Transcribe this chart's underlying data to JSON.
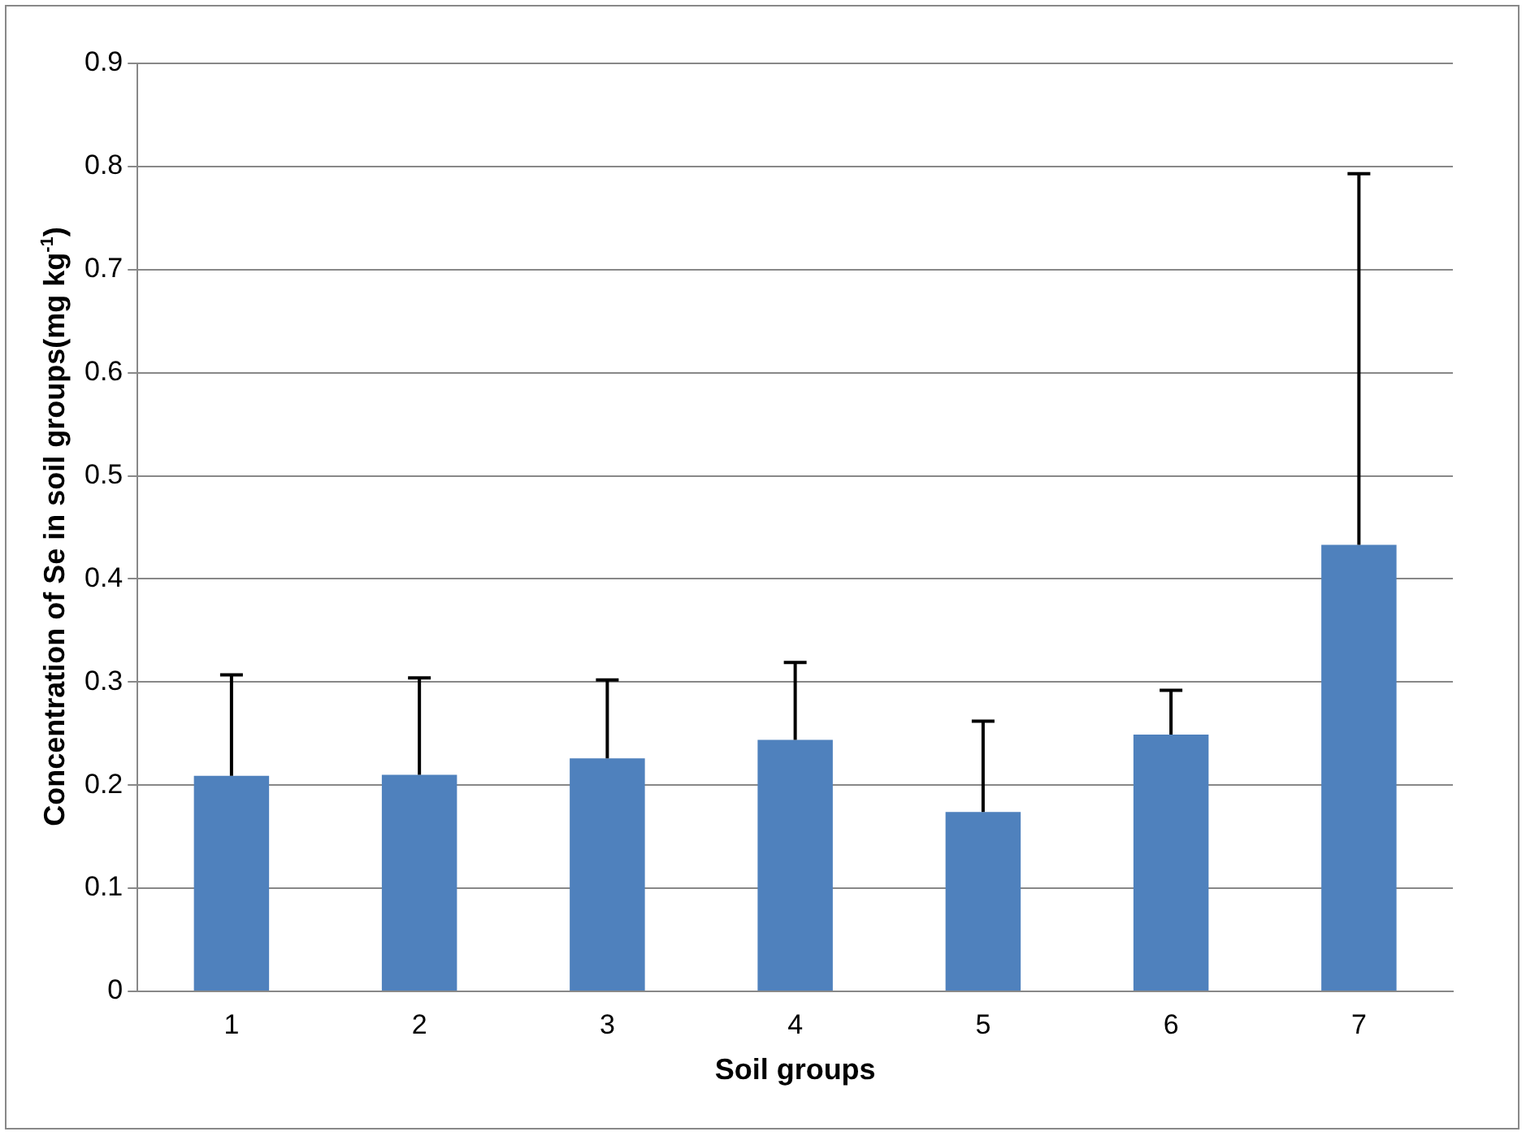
{
  "chart_data": {
    "type": "bar",
    "xlabel": "Soil groups",
    "ylabel": "Concentration of Se in soil groups(mg kg$^{-1}$)",
    "categories": [
      "1",
      "2",
      "3",
      "4",
      "5",
      "6",
      "7"
    ],
    "values": [
      0.209,
      0.21,
      0.226,
      0.244,
      0.174,
      0.249,
      0.433
    ],
    "errors": [
      [
        0.209,
        0.307
      ],
      [
        0.21,
        0.304
      ],
      [
        0.226,
        0.302
      ],
      [
        0.244,
        0.319
      ],
      [
        0.174,
        0.262
      ],
      [
        0.249,
        0.292
      ],
      [
        0.433,
        0.793
      ]
    ],
    "color": "#4f81bd",
    "ylim": [
      0,
      0.9
    ],
    "yticks": [
      0,
      0.1,
      0.2,
      0.3,
      0.4,
      0.5,
      0.6,
      0.7,
      0.8,
      0.9
    ],
    "grid": "y",
    "legend": false
  }
}
